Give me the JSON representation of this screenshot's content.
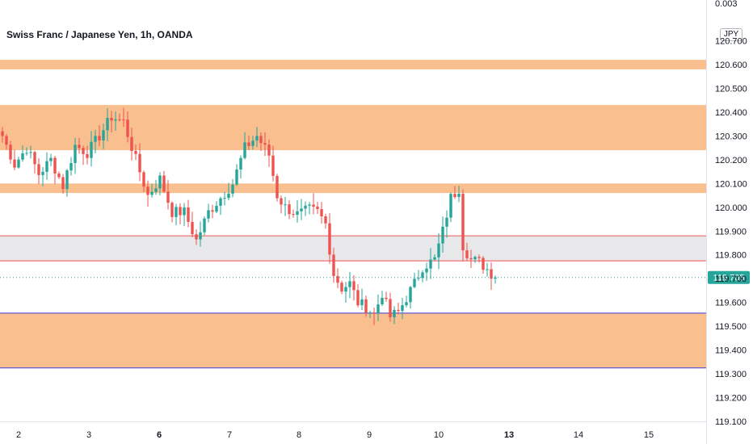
{
  "header": {
    "title": "Swiss Franc / Japanese Yen, 1h, OANDA",
    "currency_badge": "JPY",
    "top_value": "0.003"
  },
  "chart_data": {
    "type": "candlestick",
    "symbol": "Swiss Franc / Japanese Yen",
    "interval": "1h",
    "source": "OANDA",
    "currency": "JPY",
    "last_price": 119.705,
    "last_price_label": "119.705",
    "ylim": [
      119.07,
      120.79
    ],
    "y_ticks": [
      "120.600",
      "120.500",
      "120.400",
      "120.300",
      "120.200",
      "120.100",
      "120.000",
      "119.900",
      "119.800",
      "119.700",
      "119.600",
      "119.500",
      "119.400",
      "119.300",
      "119.200",
      "119.100"
    ],
    "partial_tick": "120.700",
    "x_ticks": [
      {
        "label": "2",
        "bold": false
      },
      {
        "label": "3",
        "bold": false
      },
      {
        "label": "6",
        "bold": true
      },
      {
        "label": "7",
        "bold": false
      },
      {
        "label": "8",
        "bold": false
      },
      {
        "label": "9",
        "bold": false
      },
      {
        "label": "10",
        "bold": false
      },
      {
        "label": "13",
        "bold": true
      },
      {
        "label": "14",
        "bold": false
      },
      {
        "label": "15",
        "bold": false
      }
    ],
    "zones": [
      {
        "from": 120.58,
        "to": 120.62,
        "color": "#f9bf8f"
      },
      {
        "from": 120.24,
        "to": 120.43,
        "color": "#f9bf8f"
      },
      {
        "from": 120.06,
        "to": 120.1,
        "color": "#f9bf8f"
      },
      {
        "from": 119.775,
        "to": 119.88,
        "color": "#e8e8ea",
        "border": "#f05454"
      },
      {
        "from": 119.325,
        "to": 119.555,
        "color": "#f9bf8f",
        "border": "#3b3bd6"
      }
    ],
    "candle_colors": {
      "up": "#26a69a",
      "down": "#ef5350"
    },
    "anchors": [
      [
        0,
        120.3
      ],
      [
        3,
        120.18
      ],
      [
        6,
        120.25
      ],
      [
        9,
        120.14
      ],
      [
        12,
        120.2
      ],
      [
        15,
        120.09
      ],
      [
        18,
        120.26
      ],
      [
        21,
        120.23
      ],
      [
        24,
        120.3
      ],
      [
        27,
        120.38
      ],
      [
        30,
        120.36
      ],
      [
        33,
        120.2
      ],
      [
        36,
        120.05
      ],
      [
        39,
        120.12
      ],
      [
        42,
        119.98
      ],
      [
        45,
        119.98
      ],
      [
        48,
        119.86
      ],
      [
        51,
        119.98
      ],
      [
        54,
        120.04
      ],
      [
        57,
        120.1
      ],
      [
        60,
        120.25
      ],
      [
        63,
        120.3
      ],
      [
        66,
        120.22
      ],
      [
        68,
        120.05
      ],
      [
        70,
        120.0
      ],
      [
        73,
        119.97
      ],
      [
        76,
        119.99
      ],
      [
        78,
        119.98
      ],
      [
        80,
        119.93
      ],
      [
        82,
        119.72
      ],
      [
        84,
        119.66
      ],
      [
        86,
        119.68
      ],
      [
        88,
        119.6
      ],
      [
        90,
        119.58
      ],
      [
        92,
        119.55
      ],
      [
        94,
        119.64
      ],
      [
        96,
        119.54
      ],
      [
        98,
        119.56
      ],
      [
        100,
        119.62
      ],
      [
        102,
        119.68
      ],
      [
        104,
        119.75
      ],
      [
        107,
        119.78
      ],
      [
        109,
        119.9
      ],
      [
        111,
        120.04
      ],
      [
        113,
        120.08
      ],
      [
        114,
        119.84
      ],
      [
        116,
        119.78
      ],
      [
        118,
        119.77
      ],
      [
        120,
        119.74
      ],
      [
        122,
        119.705
      ]
    ]
  }
}
